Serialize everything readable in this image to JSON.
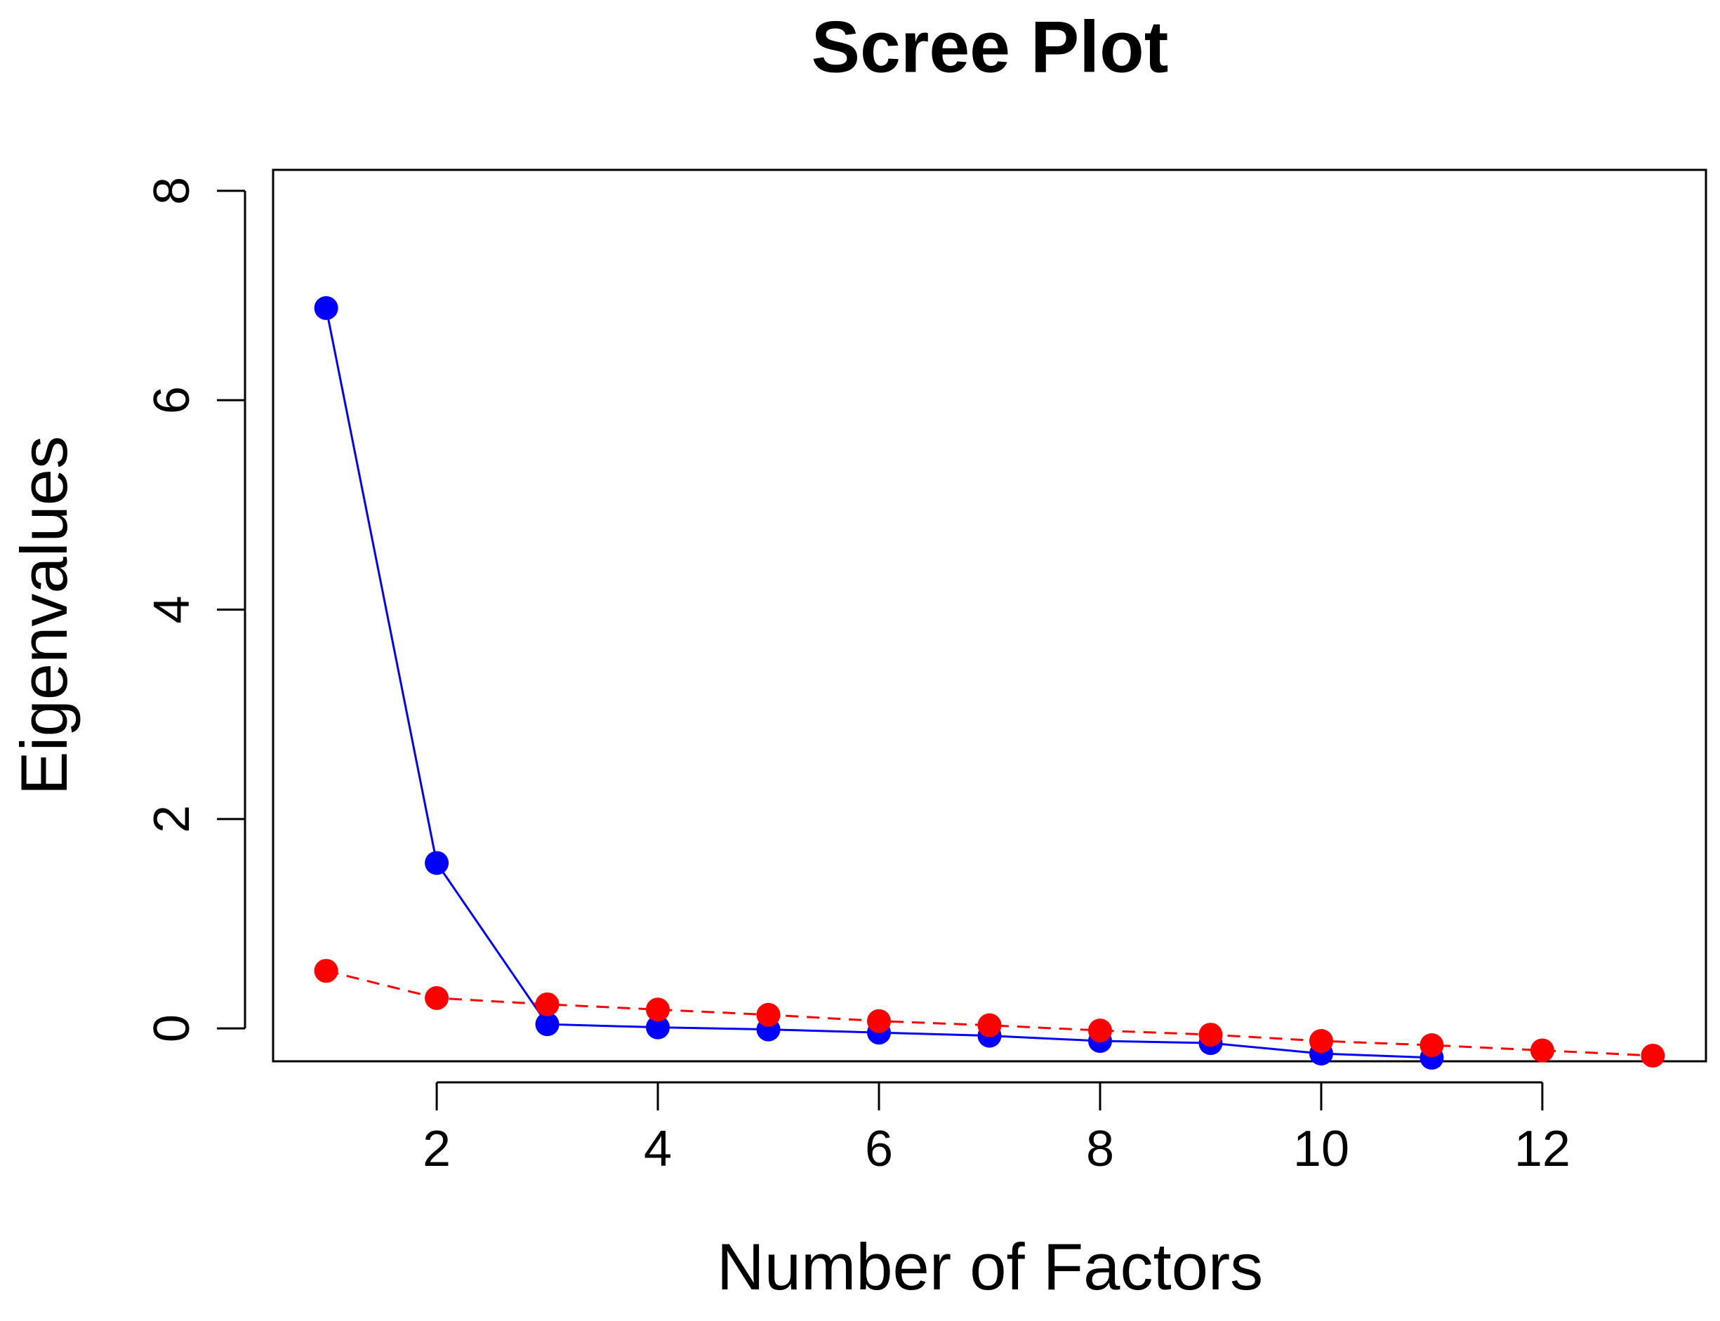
{
  "chart_data": {
    "type": "line",
    "title": "Scree Plot",
    "x_label": "Number of Factors",
    "y_label": "Eigenvalues",
    "x": [
      1,
      2,
      3,
      4,
      5,
      6,
      7,
      8,
      9,
      10,
      11,
      12,
      13
    ],
    "series": [
      {
        "color": "#0000ff",
        "dash": false,
        "values": [
          6.88,
          1.58,
          0.04,
          0.01,
          -0.01,
          -0.04,
          -0.07,
          -0.12,
          -0.14,
          -0.24,
          -0.28,
          null,
          null
        ]
      },
      {
        "color": "#ff0000",
        "dash": true,
        "values": [
          0.55,
          0.29,
          0.23,
          0.18,
          0.13,
          0.07,
          0.03,
          -0.02,
          -0.06,
          -0.12,
          -0.16,
          -0.21,
          -0.26
        ]
      }
    ],
    "xlim": [
      0.52,
      13.48
    ],
    "ylim": [
      -0.314,
      8.2
    ],
    "xticks": [
      2,
      4,
      6,
      8,
      10,
      12
    ],
    "yticks": [
      0,
      2,
      4,
      6,
      8
    ]
  }
}
